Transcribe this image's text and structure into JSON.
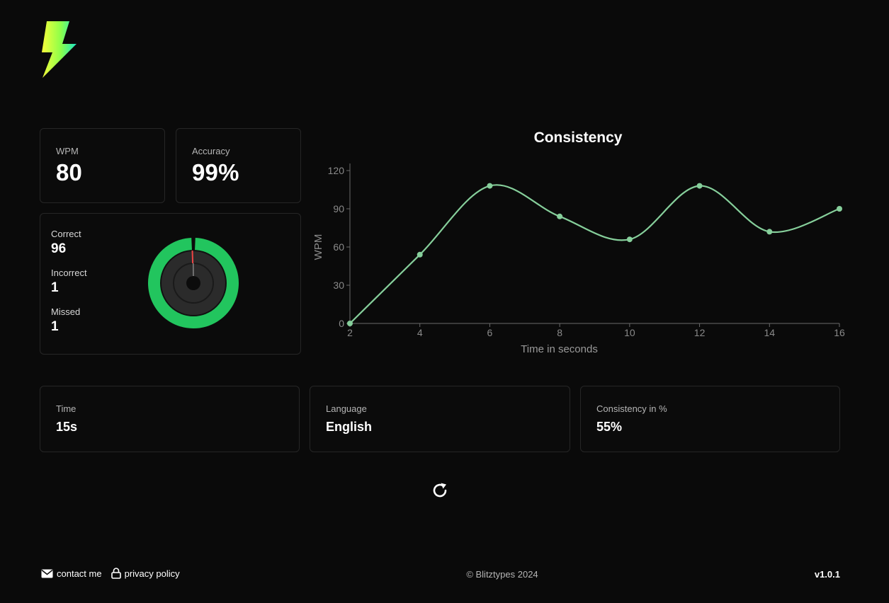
{
  "app": {
    "logo": "lightning-bolt-logo"
  },
  "stats": {
    "wpm": {
      "label": "WPM",
      "value": "80"
    },
    "accuracy": {
      "label": "Accuracy",
      "value": "99%"
    }
  },
  "characters": {
    "correct": {
      "label": "Correct",
      "value": "96"
    },
    "incorrect": {
      "label": "Incorrect",
      "value": "1"
    },
    "missed": {
      "label": "Missed",
      "value": "1"
    },
    "ratio": {
      "correct": 96,
      "incorrect": 1,
      "missed": 1
    }
  },
  "details": {
    "time": {
      "label": "Time",
      "value": "15s"
    },
    "language": {
      "label": "Language",
      "value": "English"
    },
    "consistency": {
      "label": "Consistency in %",
      "value": "55%"
    }
  },
  "chart_data": {
    "type": "line",
    "title": "Consistency",
    "xlabel": "Time in seconds",
    "ylabel": "WPM",
    "x": [
      2,
      4,
      6,
      8,
      10,
      12,
      14,
      16
    ],
    "x_ticks": [
      "2",
      "4",
      "6",
      "8",
      "10",
      "12",
      "14",
      "16"
    ],
    "y_ticks": [
      "0",
      "30",
      "60",
      "90",
      "120"
    ],
    "xlim": [
      2,
      16
    ],
    "ylim": [
      0,
      120
    ],
    "series": [
      {
        "name": "WPM",
        "values": [
          0,
          54,
          108,
          84,
          66,
          108,
          72,
          90
        ]
      }
    ],
    "color": "#86cf9b",
    "grid": false
  },
  "actions": {
    "restart": "refresh-icon"
  },
  "footer": {
    "contact": "contact me",
    "privacy": "privacy policy",
    "copyright": "© Blitztypes 2024",
    "version": "v1.0.1"
  },
  "colors": {
    "background": "#0a0a0a",
    "card_border": "#262626",
    "accent_green": "#22c55e",
    "chart_line": "#86cf9b",
    "error_red": "#ef4444"
  }
}
